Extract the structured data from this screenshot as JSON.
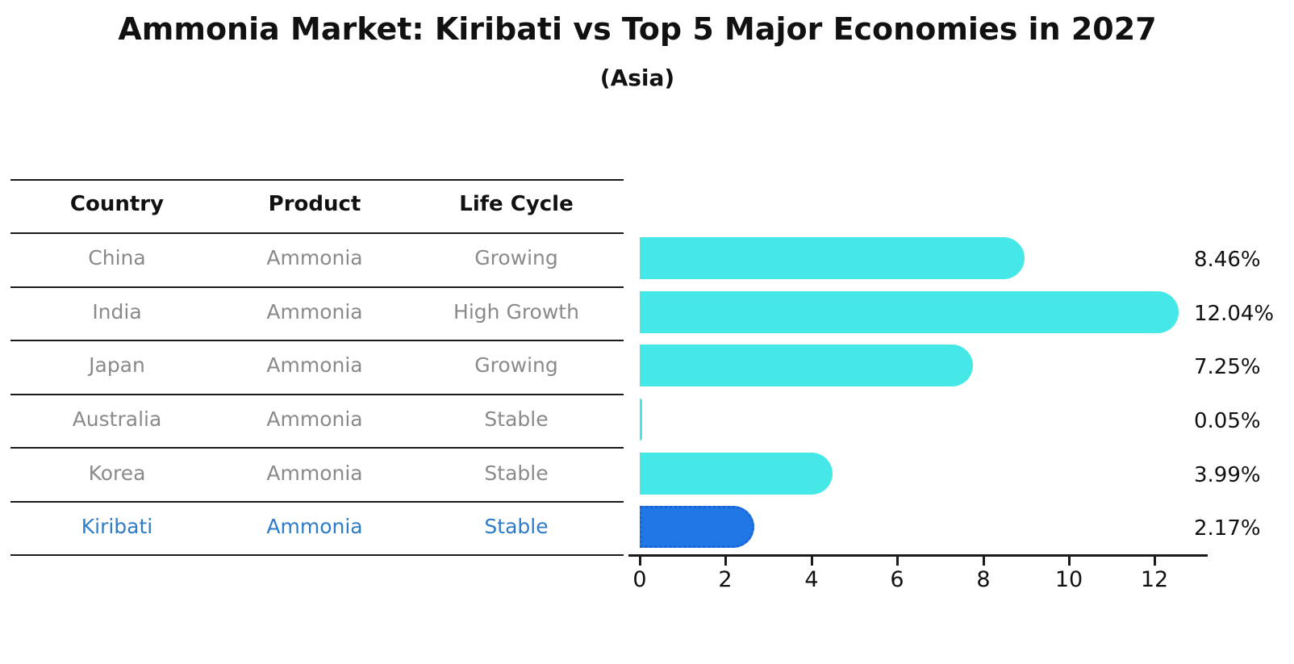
{
  "title": "Ammonia Market: Kiribati vs Top 5 Major Economies in 2027",
  "subtitle": "(Asia)",
  "table": {
    "headers": [
      "Country",
      "Product",
      "Life Cycle"
    ],
    "rows": [
      {
        "country": "China",
        "product": "Ammonia",
        "life_cycle": "Growing",
        "highlight": false
      },
      {
        "country": "India",
        "product": "Ammonia",
        "life_cycle": "High Growth",
        "highlight": false
      },
      {
        "country": "Japan",
        "product": "Ammonia",
        "life_cycle": "Growing",
        "highlight": false
      },
      {
        "country": "Australia",
        "product": "Ammonia",
        "life_cycle": "Stable",
        "highlight": false
      },
      {
        "country": "Korea",
        "product": "Ammonia",
        "life_cycle": "Stable",
        "highlight": false
      },
      {
        "country": "Kiribati",
        "product": "Ammonia",
        "life_cycle": "Stable",
        "highlight": true
      }
    ]
  },
  "chart_data": {
    "type": "bar",
    "orientation": "horizontal",
    "title": "Ammonia Market: Kiribati vs Top 5 Major Economies in 2027",
    "subtitle": "(Asia)",
    "categories": [
      "China",
      "India",
      "Japan",
      "Australia",
      "Korea",
      "Kiribati"
    ],
    "values": [
      8.46,
      12.04,
      7.25,
      0.05,
      3.99,
      2.17
    ],
    "value_labels": [
      "8.46%",
      "12.04%",
      "7.25%",
      "0.05%",
      "3.99%",
      "2.17%"
    ],
    "unit": "%",
    "xticks": [
      0,
      2,
      4,
      6,
      8,
      10,
      12
    ],
    "xlim": [
      0,
      13.2
    ],
    "grid": false,
    "legend": "none",
    "bar_color": "#45e7e7",
    "highlight_color": "#1f78e6",
    "highlight_index": 5,
    "highlight_text_color": "#2d7cc8"
  }
}
